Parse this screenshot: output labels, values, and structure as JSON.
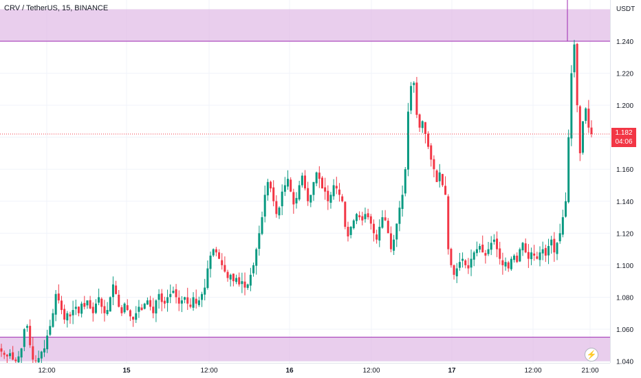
{
  "title": "CRV / TetherUS, 15, BINANCE",
  "currency": "USDT",
  "last_price": "1.182",
  "countdown": "04:06",
  "colors": {
    "up": "#089981",
    "down": "#f23645",
    "zone": "#e1bee7",
    "zone_line": "#9c27b0",
    "grid": "#f0f3fa"
  },
  "icons": {
    "replay": "lightning-bolt-icon"
  },
  "chart_data": {
    "type": "candlestick",
    "title": "CRV / TetherUS, 15, BINANCE",
    "ylabel": "USDT",
    "ylim": [
      1.04,
      1.26
    ],
    "y_ticks": [
      "1.040",
      "1.060",
      "1.080",
      "1.100",
      "1.120",
      "1.140",
      "1.160",
      "1.180",
      "1.200",
      "1.220",
      "1.240"
    ],
    "x_ticks": [
      "12:00",
      "15",
      "12:00",
      "16",
      "12:00",
      "17",
      "12:00",
      "21:00"
    ],
    "zones": [
      {
        "name": "resistance-zone",
        "from": 1.24,
        "to": 1.26
      },
      {
        "name": "support-zone",
        "from": 1.04,
        "to": 1.055
      }
    ],
    "last_price": 1.182,
    "series_close": [
      1.046,
      1.044,
      1.043,
      1.045,
      1.041,
      1.04,
      1.043,
      1.048,
      1.06,
      1.062,
      1.05,
      1.041,
      1.04,
      1.042,
      1.046,
      1.048,
      1.056,
      1.062,
      1.07,
      1.082,
      1.078,
      1.072,
      1.066,
      1.07,
      1.068,
      1.072,
      1.074,
      1.07,
      1.076,
      1.074,
      1.078,
      1.073,
      1.07,
      1.076,
      1.08,
      1.074,
      1.07,
      1.072,
      1.08,
      1.088,
      1.082,
      1.074,
      1.07,
      1.076,
      1.072,
      1.068,
      1.066,
      1.07,
      1.074,
      1.072,
      1.076,
      1.078,
      1.074,
      1.07,
      1.078,
      1.082,
      1.077,
      1.076,
      1.08,
      1.082,
      1.084,
      1.08,
      1.076,
      1.078,
      1.08,
      1.076,
      1.074,
      1.08,
      1.076,
      1.078,
      1.082,
      1.086,
      1.098,
      1.106,
      1.11,
      1.108,
      1.104,
      1.1,
      1.096,
      1.092,
      1.094,
      1.09,
      1.092,
      1.088,
      1.09,
      1.086,
      1.088,
      1.094,
      1.1,
      1.11,
      1.12,
      1.13,
      1.144,
      1.152,
      1.148,
      1.14,
      1.132,
      1.136,
      1.146,
      1.15,
      1.154,
      1.146,
      1.138,
      1.142,
      1.15,
      1.156,
      1.148,
      1.14,
      1.144,
      1.152,
      1.158,
      1.154,
      1.148,
      1.146,
      1.14,
      1.144,
      1.15,
      1.148,
      1.144,
      1.14,
      1.124,
      1.118,
      1.124,
      1.128,
      1.132,
      1.13,
      1.128,
      1.132,
      1.13,
      1.126,
      1.12,
      1.116,
      1.124,
      1.13,
      1.128,
      1.12,
      1.11,
      1.116,
      1.126,
      1.136,
      1.144,
      1.16,
      1.196,
      1.212,
      1.214,
      1.194,
      1.186,
      1.19,
      1.182,
      1.174,
      1.166,
      1.16,
      1.152,
      1.158,
      1.15,
      1.144,
      1.11,
      1.1,
      1.094,
      1.098,
      1.102,
      1.104,
      1.1,
      1.098,
      1.104,
      1.108,
      1.11,
      1.112,
      1.108,
      1.106,
      1.11,
      1.114,
      1.116,
      1.11,
      1.104,
      1.1,
      1.102,
      1.098,
      1.104,
      1.106,
      1.102,
      1.11,
      1.114,
      1.108,
      1.104,
      1.108,
      1.106,
      1.104,
      1.108,
      1.11,
      1.106,
      1.112,
      1.116,
      1.108,
      1.114,
      1.12,
      1.13,
      1.14,
      1.18,
      1.22,
      1.238,
      1.2,
      1.17,
      1.19,
      1.198,
      1.186,
      1.182
    ]
  }
}
